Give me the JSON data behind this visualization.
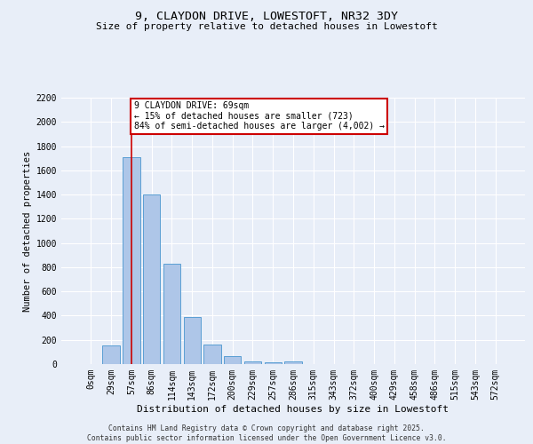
{
  "title": "9, CLAYDON DRIVE, LOWESTOFT, NR32 3DY",
  "subtitle": "Size of property relative to detached houses in Lowestoft",
  "xlabel": "Distribution of detached houses by size in Lowestoft",
  "ylabel": "Number of detached properties",
  "footer_line1": "Contains HM Land Registry data © Crown copyright and database right 2025.",
  "footer_line2": "Contains public sector information licensed under the Open Government Licence v3.0.",
  "bar_labels": [
    "0sqm",
    "29sqm",
    "57sqm",
    "86sqm",
    "114sqm",
    "143sqm",
    "172sqm",
    "200sqm",
    "229sqm",
    "257sqm",
    "286sqm",
    "315sqm",
    "343sqm",
    "372sqm",
    "400sqm",
    "429sqm",
    "458sqm",
    "486sqm",
    "515sqm",
    "543sqm",
    "572sqm"
  ],
  "bar_values": [
    0,
    155,
    1710,
    1400,
    830,
    390,
    160,
    65,
    22,
    15,
    22,
    0,
    0,
    0,
    0,
    0,
    0,
    0,
    0,
    0,
    0
  ],
  "bar_color": "#aec6e8",
  "bar_edge_color": "#5a9fd4",
  "ylim": [
    0,
    2200
  ],
  "yticks": [
    0,
    200,
    400,
    600,
    800,
    1000,
    1200,
    1400,
    1600,
    1800,
    2000,
    2200
  ],
  "property_bin_index": 2,
  "annotation_text": "9 CLAYDON DRIVE: 69sqm\n← 15% of detached houses are smaller (723)\n84% of semi-detached houses are larger (4,002) →",
  "vline_color": "#cc0000",
  "annotation_box_color": "#cc0000",
  "bg_color": "#e8eef8",
  "plot_bg_color": "#e8eef8",
  "grid_color": "#ffffff",
  "title_fontsize": 9.5,
  "subtitle_fontsize": 8.0,
  "tick_fontsize": 7.0,
  "ylabel_fontsize": 7.5,
  "xlabel_fontsize": 8.0,
  "annotation_fontsize": 7.0,
  "footer_fontsize": 5.8
}
